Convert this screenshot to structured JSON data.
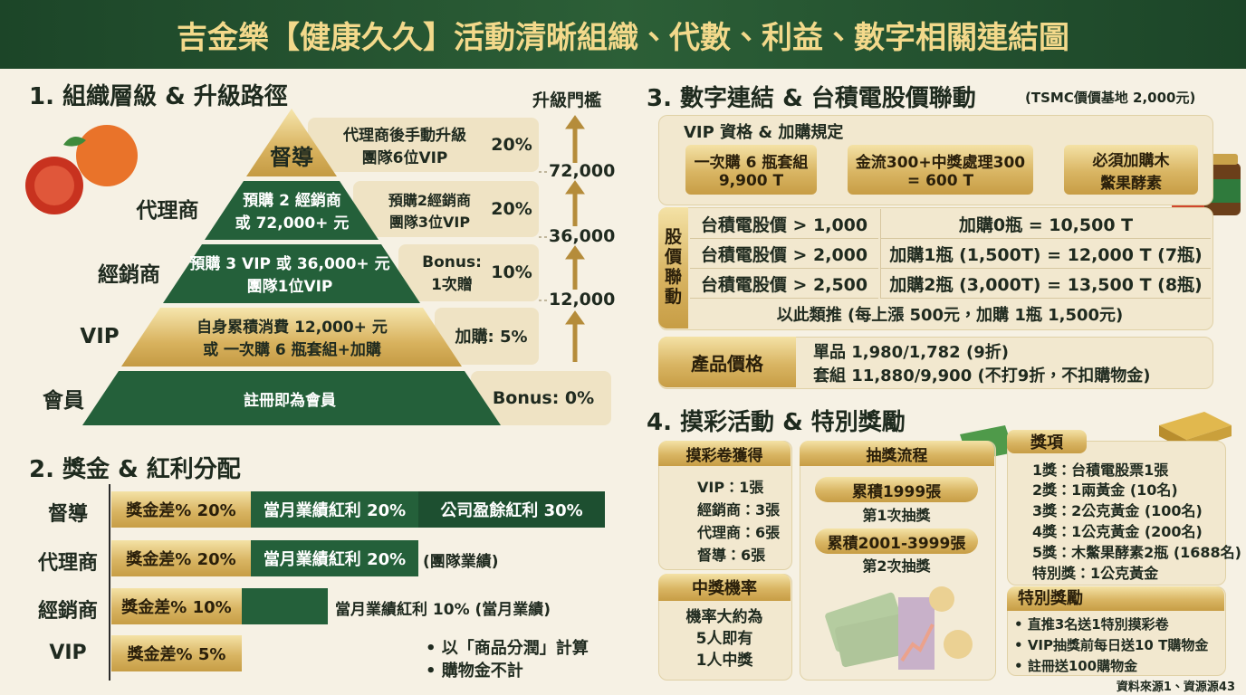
{
  "header": {
    "title": "吉金樂【健康久久】活動清晰組織、代數、利益、數字相關連結圖"
  },
  "organization": {
    "title": "1. 組織層級 & 升級路徑",
    "threshold_title": "升級門檻",
    "thresholds": [
      "72,000",
      "36,000",
      "12,000"
    ],
    "levels": [
      {
        "name": "督導",
        "detail": "代理商後手動升級\n團隊6位VIP",
        "rate": "20%"
      },
      {
        "name": "代理商",
        "condition": "預購 2 經銷商\n或 72,000+ 元",
        "detail": "預購2經銷商\n團隊3位VIP",
        "rate": "20%"
      },
      {
        "name": "經銷商",
        "condition": "預購 3 VIP 或 36,000+ 元\n團隊1位VIP",
        "detail": "Bonus:\n1次贈",
        "rate": "10%"
      },
      {
        "name": "VIP",
        "condition": "自身累積消費 12,000+ 元\n或 一次購 6 瓶套組+加購",
        "detail": "加購: 5%"
      },
      {
        "name": "會員",
        "condition": "註冊即為會員",
        "detail": "Bonus: 0%"
      }
    ]
  },
  "bonus": {
    "title": "2. 獎金 & 紅利分配",
    "rows": [
      {
        "name": "督導",
        "segments": [
          "獎金差% 20%",
          "當月業績紅利 20%",
          "公司盈餘紅利 30%"
        ]
      },
      {
        "name": "代理商",
        "segments": [
          "獎金差% 20%",
          "當月業績紅利 20%"
        ],
        "note": "(團隊業績)"
      },
      {
        "name": "經銷商",
        "segments": [
          "獎金差% 10%"
        ],
        "note": "當月業績紅利 10% (當月業績)"
      },
      {
        "name": "VIP",
        "segments": [
          "獎金差% 5%"
        ]
      }
    ],
    "notes": [
      "以「商品分潤」計算",
      "購物金不計"
    ]
  },
  "linkage": {
    "title": "3. 數字連結 & 台積電股價聯動",
    "subtitle": "(TSMC價價基地 2,000元)",
    "vip": {
      "title": "VIP 資格 & 加購規定",
      "steps": [
        "一次購 6 瓶套組\n9,900 T",
        "金流300+中獎處理300\n= 600 T",
        "必須加購木\n鱉果酵素"
      ]
    },
    "stock": {
      "label": "股\n價\n聯\n動",
      "rows": [
        [
          "台積電股價 > 1,000",
          "加購0瓶 = 10,500 T"
        ],
        [
          "台積電股價 > 2,000",
          "加購1瓶 (1,500T) = 12,000 T (7瓶)"
        ],
        [
          "台積電股價 > 2,500",
          "加購2瓶 (3,000T) = 13,500 T (8瓶)"
        ]
      ],
      "footer": "以此類推 (每上漲 500元，加購 1瓶 1,500元)"
    },
    "price": {
      "label": "產品價格",
      "lines": [
        "單品 1,980/1,782 (9折)",
        "套組 11,880/9,900 (不打9折，不扣購物金)"
      ]
    }
  },
  "lottery": {
    "title": "4. 摸彩活動 & 特別獎勵",
    "tickets": {
      "title": "摸彩卷獲得",
      "items": [
        "VIP：1張",
        "經銷商：3張",
        "代理商：6張",
        "督導：6張"
      ]
    },
    "odds": {
      "title": "中獎機率",
      "text": "機率大約為\n5人即有\n1人中獎"
    },
    "draw": {
      "title": "抽獎流程",
      "steps": [
        {
          "label": "累積1999張",
          "sub": "第1次抽獎"
        },
        {
          "label": "累積2001-3999張",
          "sub": "第2次抽獎"
        }
      ]
    },
    "prizes": {
      "title": "獎項",
      "items": [
        "1獎：台積電股票1張",
        "2獎：1兩黃金 (10名)",
        "3獎：2公克黃金 (100名)",
        "4獎：1公克黃金 (200名)",
        "5獎：木鱉果酵素2瓶 (1688名)",
        "特別獎：1公克黃金"
      ]
    },
    "special": {
      "title": "特別獎勵",
      "items": [
        "直推3名送1特別摸彩卷",
        "VIP抽獎前每日送10 T購物金",
        "註冊送100購物金"
      ]
    }
  },
  "footer": {
    "source": "資料來源1、資源源43"
  }
}
